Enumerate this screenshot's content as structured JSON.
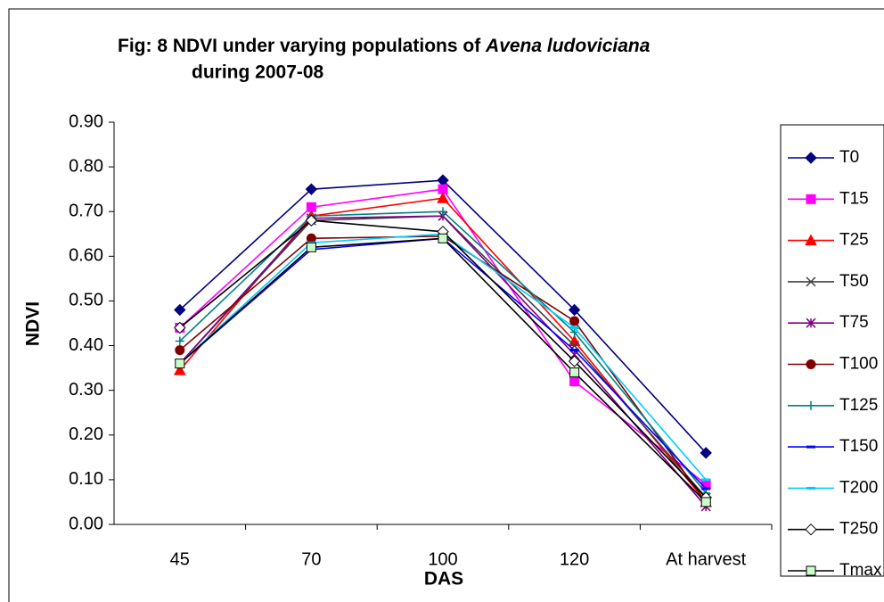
{
  "chart_data": {
    "type": "line",
    "title": [
      "Fig: 8  NDVI under varying populations of ",
      "Avena ludoviciana",
      "during 2007-08"
    ],
    "x_label": "DAS",
    "y_label": "NDVI",
    "categories": [
      "45",
      "70",
      "100",
      "120",
      "At harvest"
    ],
    "ylim": [
      0,
      0.9
    ],
    "yticks": [
      {
        "value": 0,
        "label": "0.00"
      },
      {
        "value": 0.1,
        "label": "0.10"
      },
      {
        "value": 0.2,
        "label": "0.20"
      },
      {
        "value": 0.3,
        "label": "0.30"
      },
      {
        "value": 0.4,
        "label": "0.40"
      },
      {
        "value": 0.5,
        "label": "0.50"
      },
      {
        "value": 0.6,
        "label": "0.60"
      },
      {
        "value": 0.7,
        "label": "0.70"
      },
      {
        "value": 0.8,
        "label": "0.80"
      },
      {
        "value": 0.9,
        "label": "0.90"
      }
    ],
    "grid": false,
    "legend": "right",
    "series": [
      {
        "name": "T0",
        "color": "#000080",
        "marker": "diamond",
        "values": [
          0.48,
          0.75,
          0.77,
          0.48,
          0.16
        ]
      },
      {
        "name": "T15",
        "color": "#ff00ff",
        "marker": "square",
        "values": [
          0.44,
          0.71,
          0.75,
          0.32,
          0.09
        ]
      },
      {
        "name": "T25",
        "color": "#ff0000",
        "marker": "triangle",
        "values": [
          0.345,
          0.69,
          0.73,
          0.41,
          0.05
        ]
      },
      {
        "name": "T50",
        "color": "#404040",
        "marker": "x",
        "values": [
          0.36,
          0.68,
          0.69,
          0.4,
          0.06
        ]
      },
      {
        "name": "T75",
        "color": "#800080",
        "marker": "star",
        "values": [
          0.36,
          0.685,
          0.69,
          0.38,
          0.04
        ]
      },
      {
        "name": "T100",
        "color": "#800000",
        "marker": "circle",
        "values": [
          0.39,
          0.64,
          0.645,
          0.455,
          0.05
        ]
      },
      {
        "name": "T125",
        "color": "#008080",
        "marker": "plus",
        "values": [
          0.41,
          0.69,
          0.7,
          0.43,
          0.07
        ]
      },
      {
        "name": "T150",
        "color": "#0000ff",
        "marker": "dash",
        "values": [
          0.36,
          0.615,
          0.64,
          0.39,
          0.08
        ]
      },
      {
        "name": "T200",
        "color": "#00ccff",
        "marker": "dash",
        "values": [
          0.36,
          0.63,
          0.65,
          0.44,
          0.1
        ]
      },
      {
        "name": "T250",
        "color": "#000000",
        "marker": "diamond",
        "marker_fill": "#ffffff",
        "values": [
          0.44,
          0.68,
          0.655,
          0.365,
          0.06
        ]
      },
      {
        "name": "Tmax",
        "color": "#000000",
        "marker": "square",
        "marker_fill": "#ccffcc",
        "values": [
          0.36,
          0.62,
          0.64,
          0.34,
          0.05
        ]
      }
    ]
  }
}
